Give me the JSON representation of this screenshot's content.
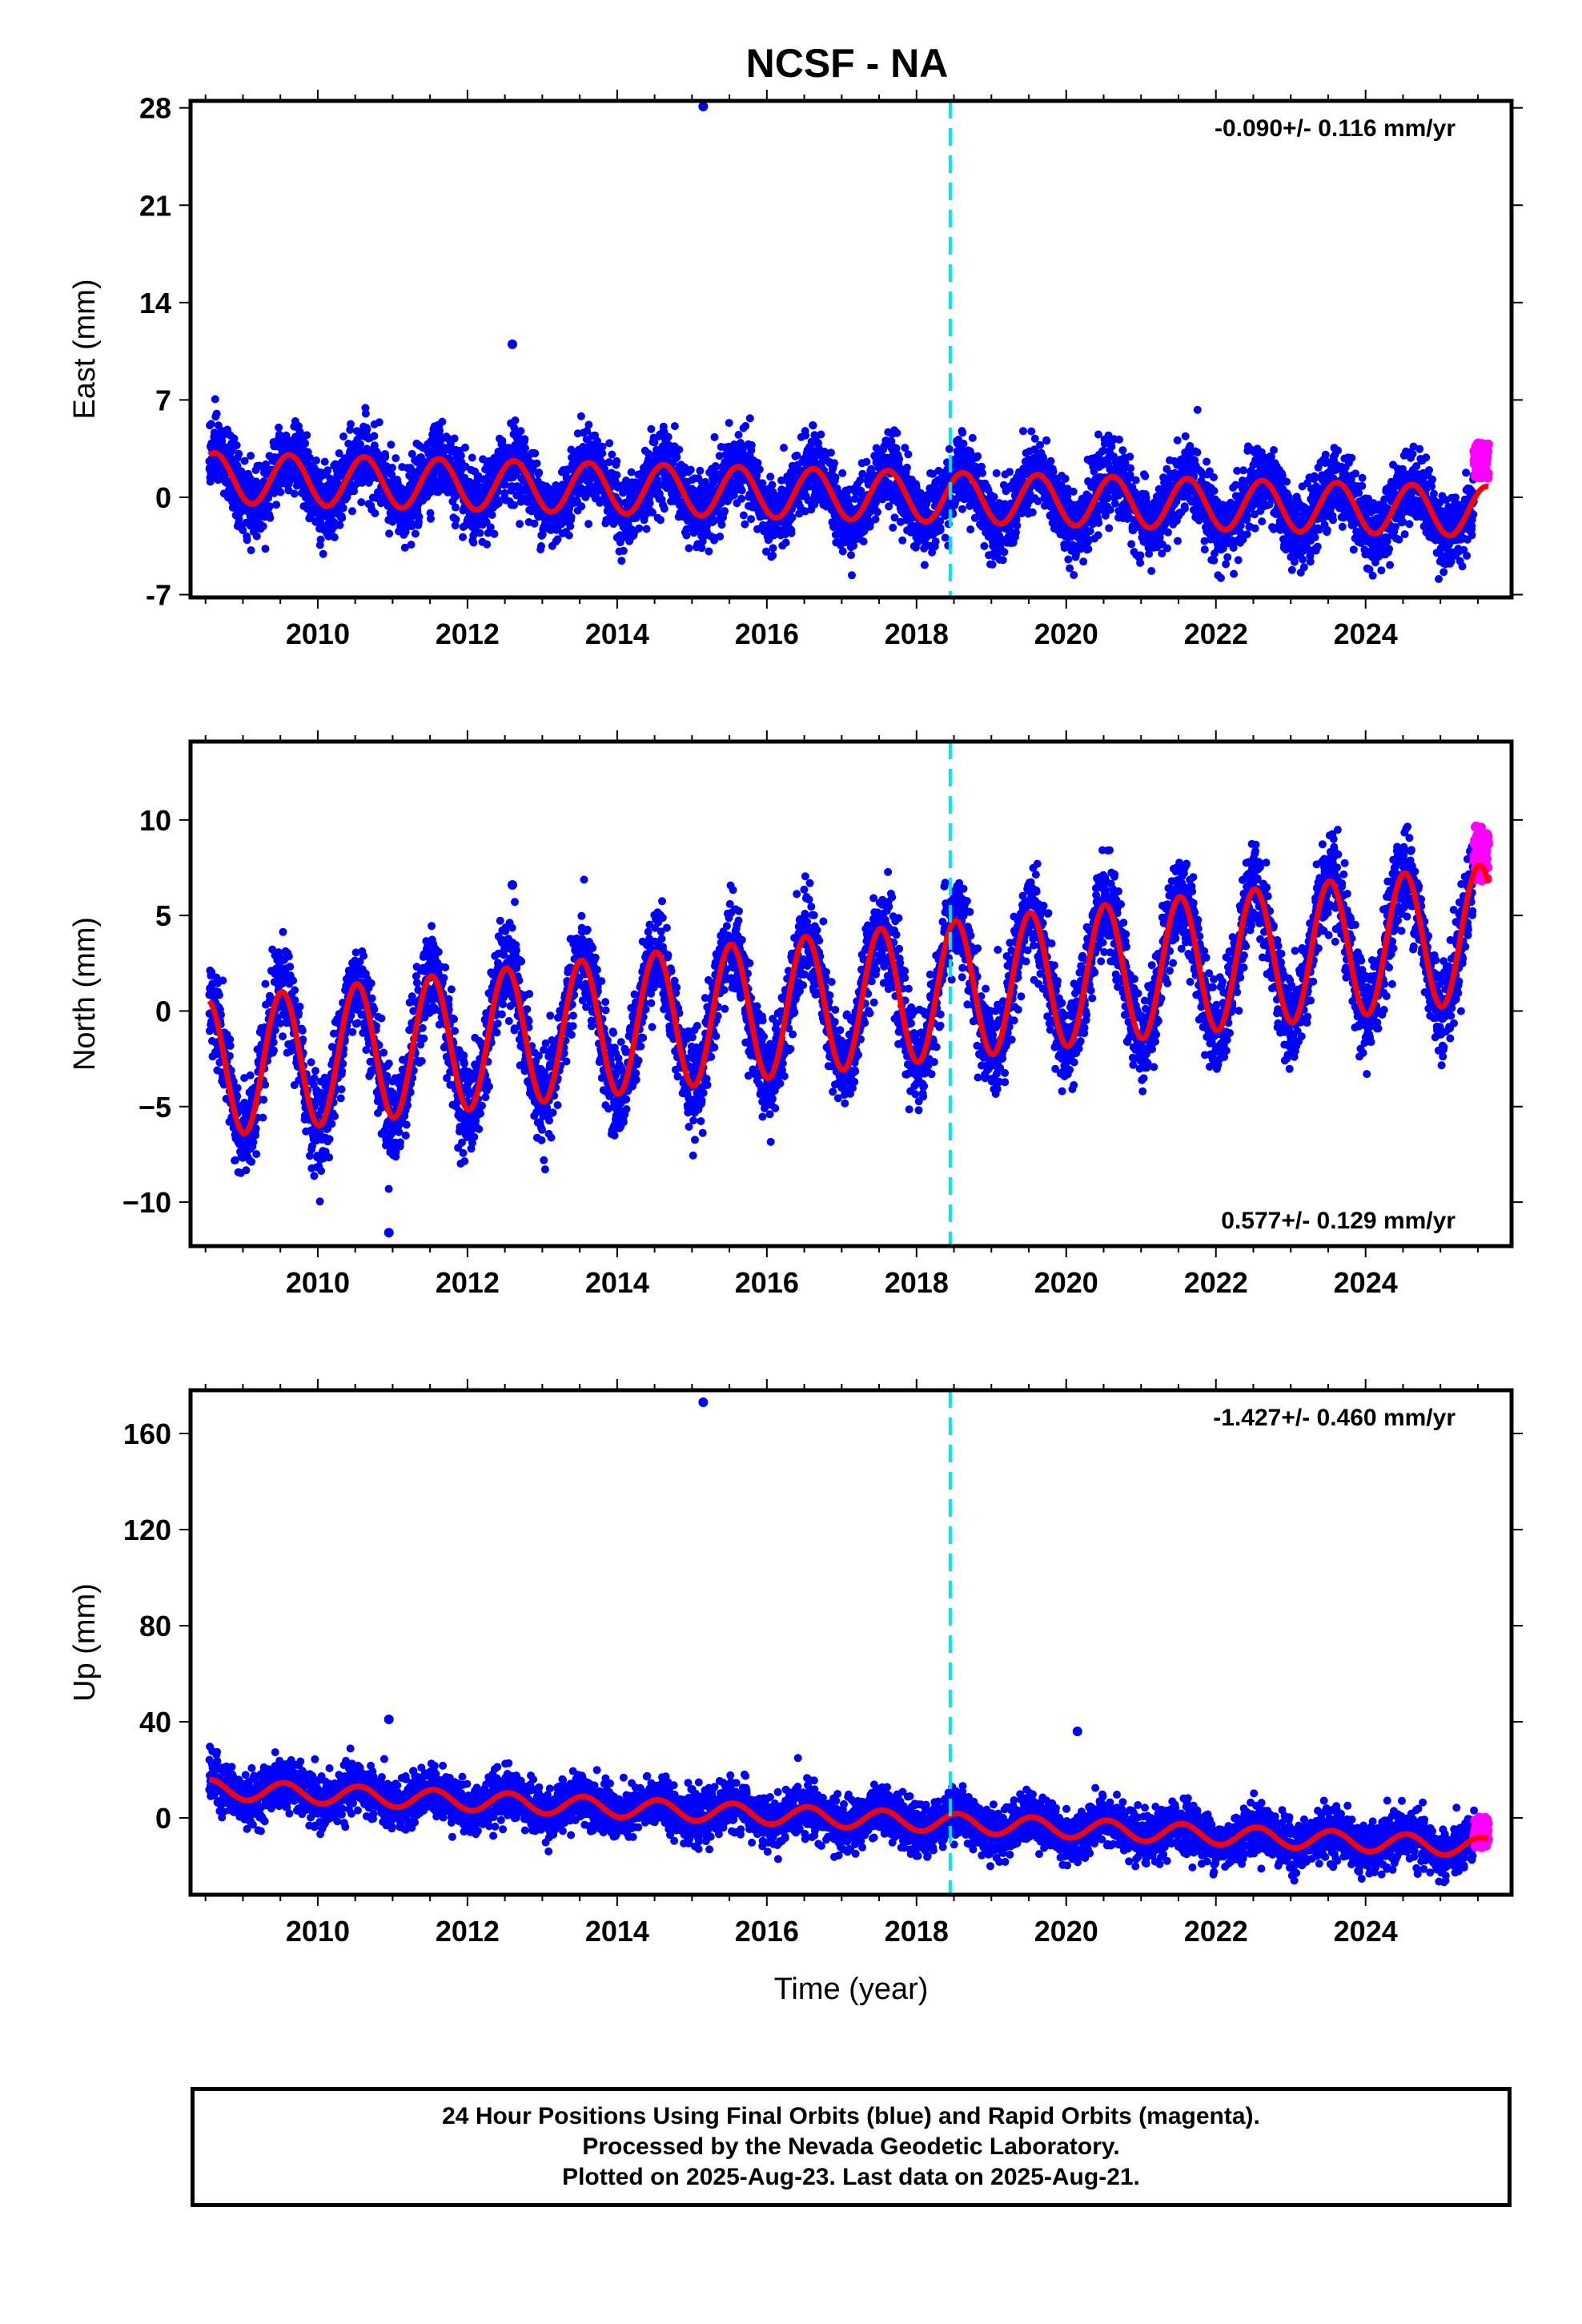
{
  "title": "NCSF - NA",
  "caption": {
    "line1": "24 Hour Positions Using Final Orbits (blue) and Rapid Orbits (magenta).",
    "line2": "Processed by the Nevada Geodetic Laboratory.",
    "line3": "Plotted on 2025-Aug-23. Last data on 2025-Aug-21."
  },
  "colors": {
    "final_orbits": "#0000ff",
    "rapid_orbits": "#ff00ff",
    "model_fit": "#ff0000",
    "equipment_change": "#00e5ee",
    "frame": "#000000"
  },
  "chart_data": [
    {
      "type": "scatter",
      "xlabel": "",
      "ylabel": "East (mm)",
      "xlim": [
        2008.3,
        2025.95
      ],
      "ylim": [
        -7.2,
        28.5
      ],
      "xticks": [
        2010,
        2012,
        2014,
        2016,
        2018,
        2020,
        2022,
        2024
      ],
      "yticks": [
        -7,
        0,
        7,
        14,
        21,
        28
      ],
      "rate_text": "-0.090+/- 0.116 mm/yr",
      "rate_position": "top-right",
      "equipment_change_year": 2018.45,
      "model": {
        "mean_start": 1.4,
        "mean_end": -1.0,
        "annual_amplitude": 1.8,
        "peak_phase": 0.62,
        "offset_at_change": -1.4,
        "offset_at_2025": -0.8
      },
      "noise_sd": 1.3,
      "outliers": [
        {
          "x": 2015.15,
          "y": 28.1
        },
        {
          "x": 2012.6,
          "y": 11.0
        }
      ],
      "rapid": {
        "x_start": 2025.45,
        "x_end": 2025.64,
        "mean": 2.6,
        "spread": 2.6
      }
    },
    {
      "type": "scatter",
      "xlabel": "",
      "ylabel": "North (mm)",
      "xlim": [
        2008.3,
        2025.95
      ],
      "ylim": [
        -12.3,
        14.1
      ],
      "xticks": [
        2010,
        2012,
        2014,
        2016,
        2018,
        2020,
        2022,
        2024
      ],
      "yticks": [
        -10,
        -5,
        0,
        5,
        10
      ],
      "ytick_labels": [
        "−10",
        "−5",
        "0",
        "5",
        "10"
      ],
      "rate_text": "0.577+/- 0.129 mm/yr",
      "rate_position": "bottom-right",
      "equipment_change_year": 2018.45,
      "model": {
        "mean_start": -3.0,
        "mean_end": 4.0,
        "annual_amplitude": 3.6,
        "peak_phase": 0.52,
        "offset_at_change": 0.0,
        "offset_at_2025": 0.0
      },
      "noise_sd": 1.2,
      "outliers": [
        {
          "x": 2010.95,
          "y": -11.6
        },
        {
          "x": 2012.6,
          "y": 6.6
        }
      ],
      "rapid": {
        "x_start": 2025.45,
        "x_end": 2025.64,
        "mean": 8.3,
        "spread": 3.0
      }
    },
    {
      "type": "scatter",
      "xlabel": "Time (year)",
      "ylabel": "Up (mm)",
      "xlim": [
        2008.3,
        2025.95
      ],
      "ylim": [
        -32,
        178
      ],
      "xticks": [
        2010,
        2012,
        2014,
        2016,
        2018,
        2020,
        2022,
        2024
      ],
      "yticks": [
        0,
        40,
        80,
        120,
        160
      ],
      "rate_text": "-1.427+/- 0.460 mm/yr",
      "rate_position": "top-right",
      "equipment_change_year": 2018.45,
      "model": {
        "mean_start": 12.0,
        "mean_end": -12.0,
        "annual_amplitude": 4.0,
        "peak_phase": 0.55,
        "offset_at_change": 0.0,
        "offset_at_2025": 0.0
      },
      "noise_sd": 5.0,
      "outliers": [
        {
          "x": 2015.15,
          "y": 173
        },
        {
          "x": 2010.95,
          "y": 41
        },
        {
          "x": 2020.15,
          "y": 36
        }
      ],
      "rapid": {
        "x_start": 2025.45,
        "x_end": 2025.64,
        "mean": -6.0,
        "spread": 13.0
      }
    }
  ]
}
